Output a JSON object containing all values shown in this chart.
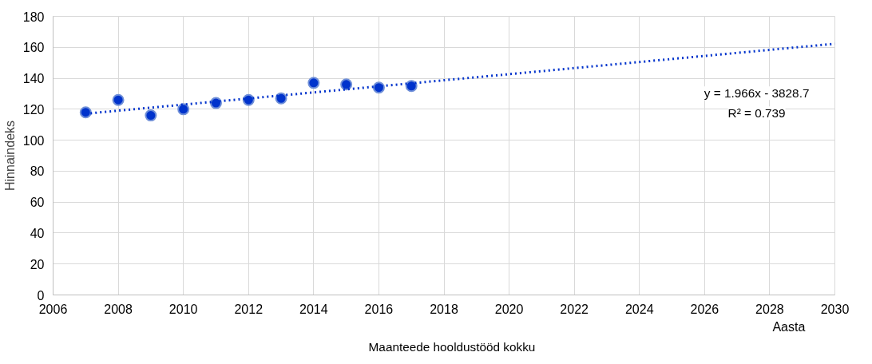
{
  "chart_data": {
    "type": "scatter",
    "xlabel": "Aasta",
    "ylabel": "Hinnaindeks",
    "xlim": [
      2006,
      2030
    ],
    "xticks": [
      2006,
      2008,
      2010,
      2012,
      2014,
      2016,
      2018,
      2020,
      2022,
      2024,
      2026,
      2028,
      2030
    ],
    "ylim": [
      0,
      180
    ],
    "yticks": [
      0,
      20,
      40,
      60,
      80,
      100,
      120,
      140,
      160,
      180
    ],
    "grid": true,
    "legend": "bottom",
    "marker": "circle",
    "series": [
      {
        "name": "Maanteede hooldustööd kokku",
        "color": "#0033cc",
        "x": [
          2007,
          2008,
          2009,
          2010,
          2011,
          2012,
          2013,
          2014,
          2015,
          2016,
          2017
        ],
        "values": [
          118,
          126,
          116,
          120,
          124,
          126,
          127,
          137,
          136,
          134,
          135
        ]
      },
      {
        "color": "#0033cc",
        "type": "line",
        "marker": "none",
        "line_style": "dotted",
        "x": [
          2007,
          2030
        ],
        "values": [
          117.1,
          162.3
        ]
      }
    ],
    "annotations": [
      "y = 1.966x - 3828.7",
      "R² = 0.739"
    ]
  }
}
